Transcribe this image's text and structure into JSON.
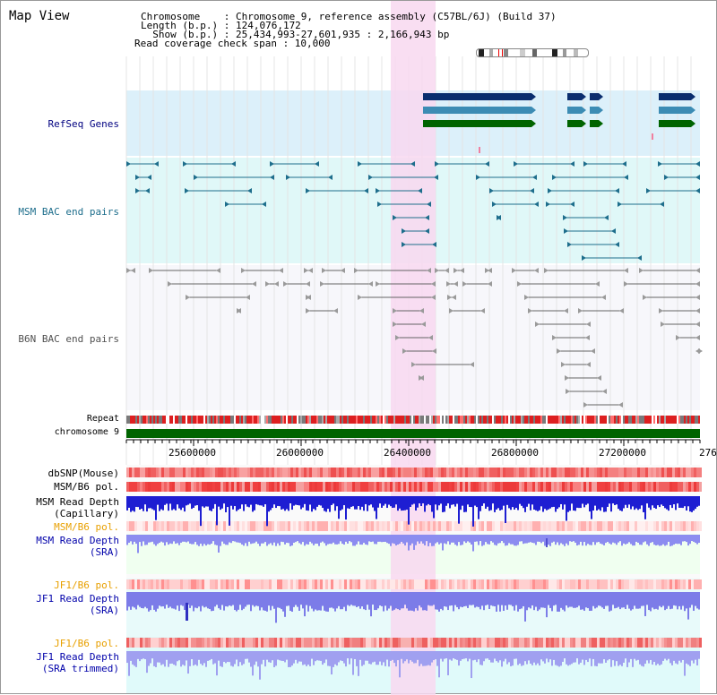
{
  "header": {
    "title": "Map View",
    "info_lines": [
      "Chromosome    : Chromosome 9, reference assembly (C57BL/6J) (Build 37)",
      "Length (b.p.) : 124,076,172",
      "  Show (b.p.) : 25,434,993-27,601,935 : 2,166,943 bp",
      "Read coverage check span : 10,000"
    ]
  },
  "tracks": {
    "refseq": "RefSeq Genes",
    "msm_bac": "MSM BAC end pairs",
    "b6n_bac": "B6N BAC end pairs",
    "repeat": "Repeat",
    "chromosome": "chromosome 9"
  },
  "axis": {
    "ticks": [
      "25600000",
      "26000000",
      "26400000",
      "26800000",
      "27200000",
      "276"
    ]
  },
  "lower_tracks": [
    {
      "id": "dbsnp",
      "lines": [
        "dbSNP(Mouse)"
      ],
      "color": "#000000"
    },
    {
      "id": "msm-b6-pol-1",
      "lines": [
        "MSM/B6 pol."
      ],
      "color": "#000000"
    },
    {
      "id": "msm-read-depth-cap",
      "lines": [
        "MSM Read Depth",
        "(Capillary)"
      ],
      "color": "#000000"
    },
    {
      "id": "msm-b6-pol-2",
      "lines": [
        "MSM/B6 pol."
      ],
      "color": "#e8a000"
    },
    {
      "id": "msm-read-depth-sra",
      "lines": [
        "MSM Read Depth",
        "(SRA)"
      ],
      "color": "#0000aa"
    },
    {
      "id": "jf1-b6-pol-1",
      "lines": [
        "JF1/B6 pol."
      ],
      "color": "#e8a000"
    },
    {
      "id": "jf1-read-depth-sra",
      "lines": [
        "JF1 Read Depth",
        "(SRA)"
      ],
      "color": "#0000aa"
    },
    {
      "id": "jf1-b6-pol-2",
      "lines": [
        "JF1/B6 pol."
      ],
      "color": "#e8a000"
    },
    {
      "id": "jf1-read-depth-trim",
      "lines": [
        "JF1 Read Depth",
        "(SRA trimmed)"
      ],
      "color": "#0000aa"
    }
  ],
  "colors": {
    "refseq_bg": "#dcf0fa",
    "msm_bg": "#e0f8f8",
    "highlight": "#f8d8f0",
    "gene_dark": "#0a2d6e",
    "gene_mid": "#3c8cb4",
    "gene_green": "#006400",
    "msm_line": "#1e6e8c",
    "b6n_line": "#646464",
    "chrom": "#006400",
    "depth_blue": "#1e1ed2",
    "sra_blue": "#8c8cf0"
  }
}
